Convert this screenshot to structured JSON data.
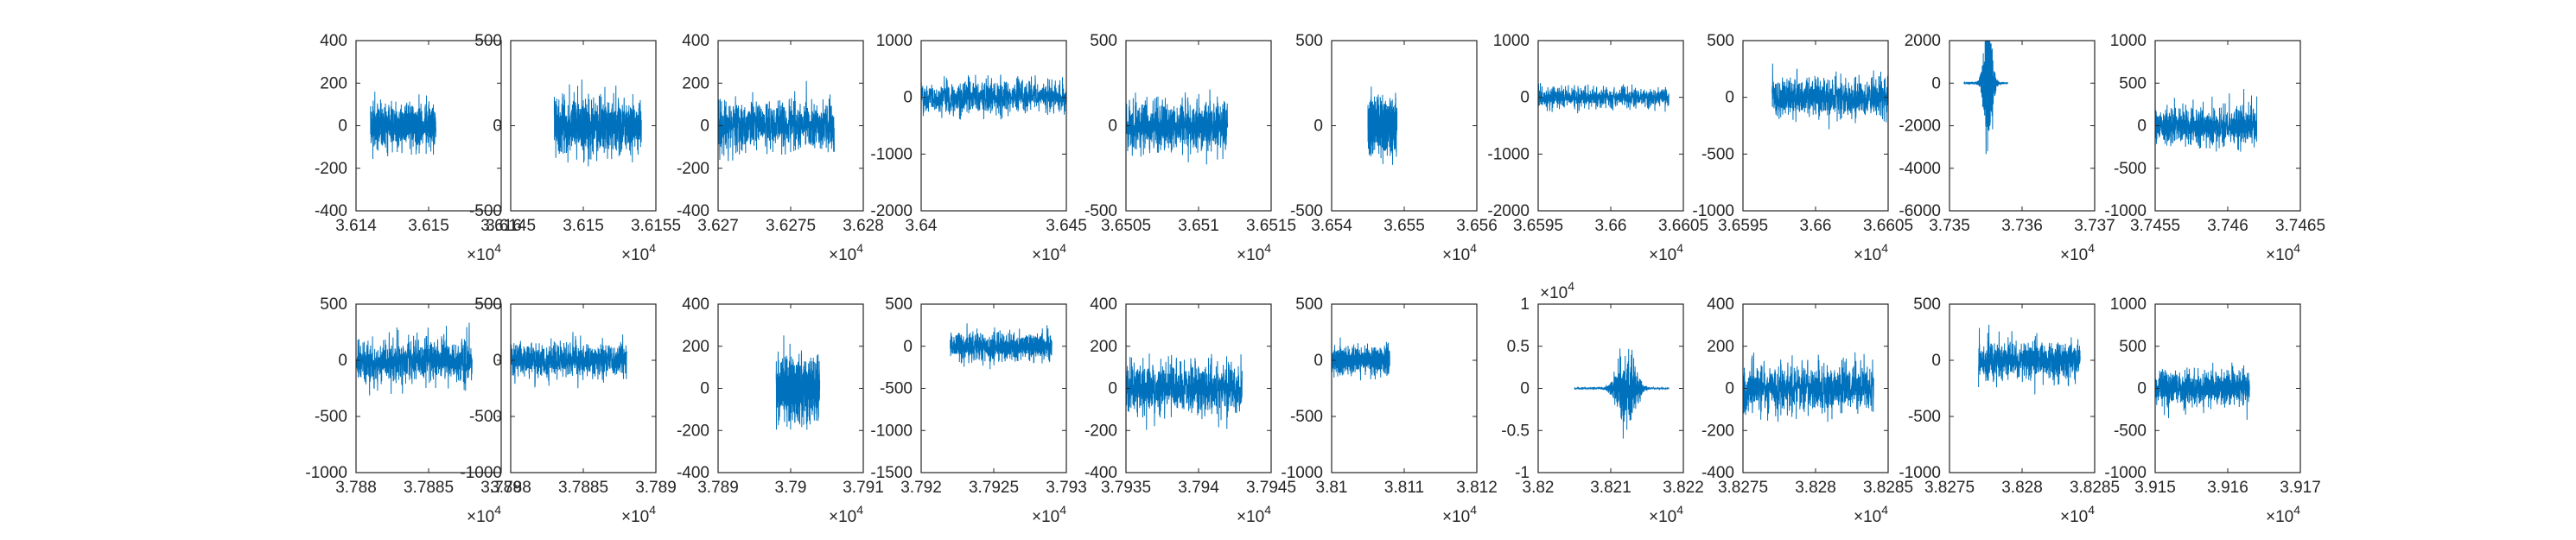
{
  "figure": {
    "background": "#ffffff",
    "line_color": "#0072BD",
    "axis_color": "#262626"
  },
  "chart_data": [
    {
      "type": "line",
      "x_range": [
        3.614,
        3.616
      ],
      "x_exponent": "×10^4",
      "ylim": [
        -400,
        400
      ],
      "x_ticks": [
        "3.614",
        "3.615",
        "3.616"
      ],
      "y_ticks": [
        "400",
        "200",
        "0",
        "-200",
        "-400"
      ],
      "series": [
        {
          "x_start": 3.6142,
          "x_end": 3.6151,
          "center": 0,
          "amplitude": 220,
          "envelope": "noise"
        }
      ]
    },
    {
      "type": "line",
      "x_range": [
        3.6145,
        3.6155
      ],
      "x_exponent": "×10^4",
      "ylim": [
        -500,
        500
      ],
      "x_ticks": [
        "3.6145",
        "3.615",
        "3.6155"
      ],
      "y_ticks": [
        "500",
        "0",
        "-500"
      ],
      "series": [
        {
          "x_start": 3.6148,
          "x_end": 3.6154,
          "center": 0,
          "amplitude": 380,
          "envelope": "noise"
        }
      ]
    },
    {
      "type": "line",
      "x_range": [
        3.627,
        3.628
      ],
      "x_exponent": "×10^4",
      "ylim": [
        -400,
        400
      ],
      "x_ticks": [
        "3.627",
        "3.6275",
        "3.628"
      ],
      "y_ticks": [
        "400",
        "200",
        "0",
        "-200",
        "-400"
      ],
      "series": [
        {
          "x_start": 3.627,
          "x_end": 3.6278,
          "center": 0,
          "amplitude": 260,
          "envelope": "noise"
        }
      ]
    },
    {
      "type": "line",
      "x_range": [
        3.64,
        3.645
      ],
      "x_exponent": "×10^4",
      "ylim": [
        -2000,
        1000
      ],
      "x_ticks": [
        "3.64",
        "3.645"
      ],
      "y_ticks": [
        "1000",
        "0",
        "-1000",
        "-2000"
      ],
      "series": [
        {
          "x_start": 3.64,
          "x_end": 3.645,
          "center": 0,
          "amplitude": 650,
          "envelope": "noise"
        }
      ]
    },
    {
      "type": "line",
      "x_range": [
        3.6505,
        3.6515
      ],
      "x_exponent": "×10^4",
      "ylim": [
        -500,
        500
      ],
      "x_ticks": [
        "3.6505",
        "3.651",
        "3.6515"
      ],
      "y_ticks": [
        "500",
        "0",
        "-500"
      ],
      "series": [
        {
          "x_start": 3.6505,
          "x_end": 3.6512,
          "center": 0,
          "amplitude": 340,
          "envelope": "noise"
        }
      ]
    },
    {
      "type": "line",
      "x_range": [
        3.654,
        3.656
      ],
      "x_exponent": "×10^4",
      "ylim": [
        -500,
        500
      ],
      "x_ticks": [
        "3.654",
        "3.655",
        "3.656"
      ],
      "y_ticks": [
        "500",
        "0",
        "-500"
      ],
      "series": [
        {
          "x_start": 3.6545,
          "x_end": 3.6549,
          "center": 0,
          "amplitude": 330,
          "envelope": "noise"
        }
      ]
    },
    {
      "type": "line",
      "x_range": [
        3.6595,
        3.6605
      ],
      "x_exponent": "×10^4",
      "ylim": [
        -2000,
        1000
      ],
      "x_ticks": [
        "3.6595",
        "3.66",
        "3.6605"
      ],
      "y_ticks": [
        "1000",
        "0",
        "-1000",
        "-2000"
      ],
      "series": [
        {
          "x_start": 3.6595,
          "x_end": 3.6604,
          "center": 0,
          "amplitude": 420,
          "envelope": "noise"
        }
      ]
    },
    {
      "type": "line",
      "x_range": [
        3.6595,
        3.6605
      ],
      "x_exponent": "×10^4",
      "ylim": [
        -1000,
        500
      ],
      "x_ticks": [
        "3.6595",
        "3.66",
        "3.6605"
      ],
      "y_ticks": [
        "500",
        "0",
        "-500",
        "-1000"
      ],
      "series": [
        {
          "x_start": 3.6597,
          "x_end": 3.6605,
          "center": 0,
          "amplitude": 380,
          "envelope": "noise"
        }
      ]
    },
    {
      "type": "line",
      "x_range": [
        3.735,
        3.737
      ],
      "x_exponent": "×10^4",
      "ylim": [
        -6000,
        2000
      ],
      "x_ticks": [
        "3.735",
        "3.736",
        "3.737"
      ],
      "y_ticks": [
        "2000",
        "0",
        "-2000",
        "-4000",
        "-6000"
      ],
      "series": [
        {
          "x_start": 3.7352,
          "x_end": 3.7358,
          "center": 0,
          "amplitude": 5000,
          "envelope": "burst"
        }
      ]
    },
    {
      "type": "line",
      "x_range": [
        3.7455,
        3.7465
      ],
      "x_exponent": "×10^4",
      "ylim": [
        -1000,
        1000
      ],
      "x_ticks": [
        "3.7455",
        "3.746",
        "3.7465"
      ],
      "y_ticks": [
        "1000",
        "500",
        "0",
        "-500",
        "-1000"
      ],
      "series": [
        {
          "x_start": 3.7455,
          "x_end": 3.7462,
          "center": 0,
          "amplitude": 500,
          "envelope": "noise"
        }
      ]
    },
    {
      "type": "line",
      "x_range": [
        3.788,
        3.789
      ],
      "x_exponent": "×10^4",
      "ylim": [
        -1000,
        500
      ],
      "x_ticks": [
        "3.788",
        "3.7885",
        "3.789"
      ],
      "y_ticks": [
        "500",
        "0",
        "-500",
        "-1000"
      ],
      "series": [
        {
          "x_start": 3.788,
          "x_end": 3.7888,
          "center": 0,
          "amplitude": 420,
          "envelope": "noise"
        }
      ]
    },
    {
      "type": "line",
      "x_range": [
        3.788,
        3.789
      ],
      "x_exponent": "×10^4",
      "ylim": [
        -1000,
        500
      ],
      "x_ticks": [
        "3.788",
        "3.7885",
        "3.789"
      ],
      "y_ticks": [
        "500",
        "0",
        "-500",
        "-1000"
      ],
      "series": [
        {
          "x_start": 3.788,
          "x_end": 3.7888,
          "center": 0,
          "amplitude": 360,
          "envelope": "noise"
        }
      ]
    },
    {
      "type": "line",
      "x_range": [
        3.789,
        3.791
      ],
      "x_exponent": "×10^4",
      "ylim": [
        -400,
        400
      ],
      "x_ticks": [
        "3.789",
        "3.79",
        "3.791"
      ],
      "y_ticks": [
        "400",
        "200",
        "0",
        "-200",
        "-400"
      ],
      "series": [
        {
          "x_start": 3.7898,
          "x_end": 3.7904,
          "center": 0,
          "amplitude": 300,
          "envelope": "noise"
        }
      ]
    },
    {
      "type": "line",
      "x_range": [
        3.792,
        3.793
      ],
      "x_exponent": "×10^4",
      "ylim": [
        -1500,
        500
      ],
      "x_ticks": [
        "3.792",
        "3.7925",
        "3.793"
      ],
      "y_ticks": [
        "500",
        "0",
        "-500",
        "-1000",
        "-1500"
      ],
      "series": [
        {
          "x_start": 3.7922,
          "x_end": 3.7929,
          "center": 0,
          "amplitude": 380,
          "envelope": "noise"
        }
      ]
    },
    {
      "type": "line",
      "x_range": [
        3.7935,
        3.7945
      ],
      "x_exponent": "×10^4",
      "ylim": [
        -400,
        400
      ],
      "x_ticks": [
        "3.7935",
        "3.794",
        "3.7945"
      ],
      "y_ticks": [
        "400",
        "200",
        "0",
        "-200",
        "-400"
      ],
      "series": [
        {
          "x_start": 3.7935,
          "x_end": 3.7943,
          "center": 0,
          "amplitude": 280,
          "envelope": "noise"
        }
      ]
    },
    {
      "type": "line",
      "x_range": [
        3.81,
        3.812
      ],
      "x_exponent": "×10^4",
      "ylim": [
        -1000,
        500
      ],
      "x_ticks": [
        "3.81",
        "3.811",
        "3.812"
      ],
      "y_ticks": [
        "500",
        "0",
        "-500",
        "-1000"
      ],
      "series": [
        {
          "x_start": 3.81,
          "x_end": 3.8108,
          "center": 0,
          "amplitude": 260,
          "envelope": "noise"
        }
      ]
    },
    {
      "type": "line",
      "x_range": [
        3.82,
        3.822
      ],
      "x_exponent": "×10^4",
      "y_exponent": "×10^4",
      "ylim": [
        -1,
        1
      ],
      "x_ticks": [
        "3.82",
        "3.821",
        "3.822"
      ],
      "y_ticks": [
        "1",
        "0.5",
        "0",
        "-0.5",
        "-1"
      ],
      "series": [
        {
          "x_start": 3.8205,
          "x_end": 3.8218,
          "center": 0,
          "amplitude": 0.8,
          "envelope": "burst"
        }
      ]
    },
    {
      "type": "line",
      "x_range": [
        3.8275,
        3.8285
      ],
      "x_exponent": "×10^4",
      "ylim": [
        -400,
        400
      ],
      "x_ticks": [
        "3.8275",
        "3.828",
        "3.8285"
      ],
      "y_ticks": [
        "400",
        "200",
        "0",
        "-200",
        "-400"
      ],
      "series": [
        {
          "x_start": 3.8275,
          "x_end": 3.8284,
          "center": 0,
          "amplitude": 260,
          "envelope": "noise"
        }
      ]
    },
    {
      "type": "line",
      "x_range": [
        3.8275,
        3.8285
      ],
      "x_exponent": "×10^4",
      "ylim": [
        -1000,
        500
      ],
      "x_ticks": [
        "3.8275",
        "3.828",
        "3.8285"
      ],
      "y_ticks": [
        "500",
        "0",
        "-500",
        "-1000"
      ],
      "series": [
        {
          "x_start": 3.8277,
          "x_end": 3.8284,
          "center": 0,
          "amplitude": 380,
          "envelope": "noise"
        }
      ]
    },
    {
      "type": "line",
      "x_range": [
        3.915,
        3.917
      ],
      "x_exponent": "×10^4",
      "ylim": [
        -1000,
        1000
      ],
      "x_ticks": [
        "3.915",
        "3.916",
        "3.917"
      ],
      "y_ticks": [
        "1000",
        "500",
        "0",
        "-500",
        "-1000"
      ],
      "series": [
        {
          "x_start": 3.915,
          "x_end": 3.9163,
          "center": 0,
          "amplitude": 480,
          "envelope": "noise"
        }
      ]
    }
  ]
}
